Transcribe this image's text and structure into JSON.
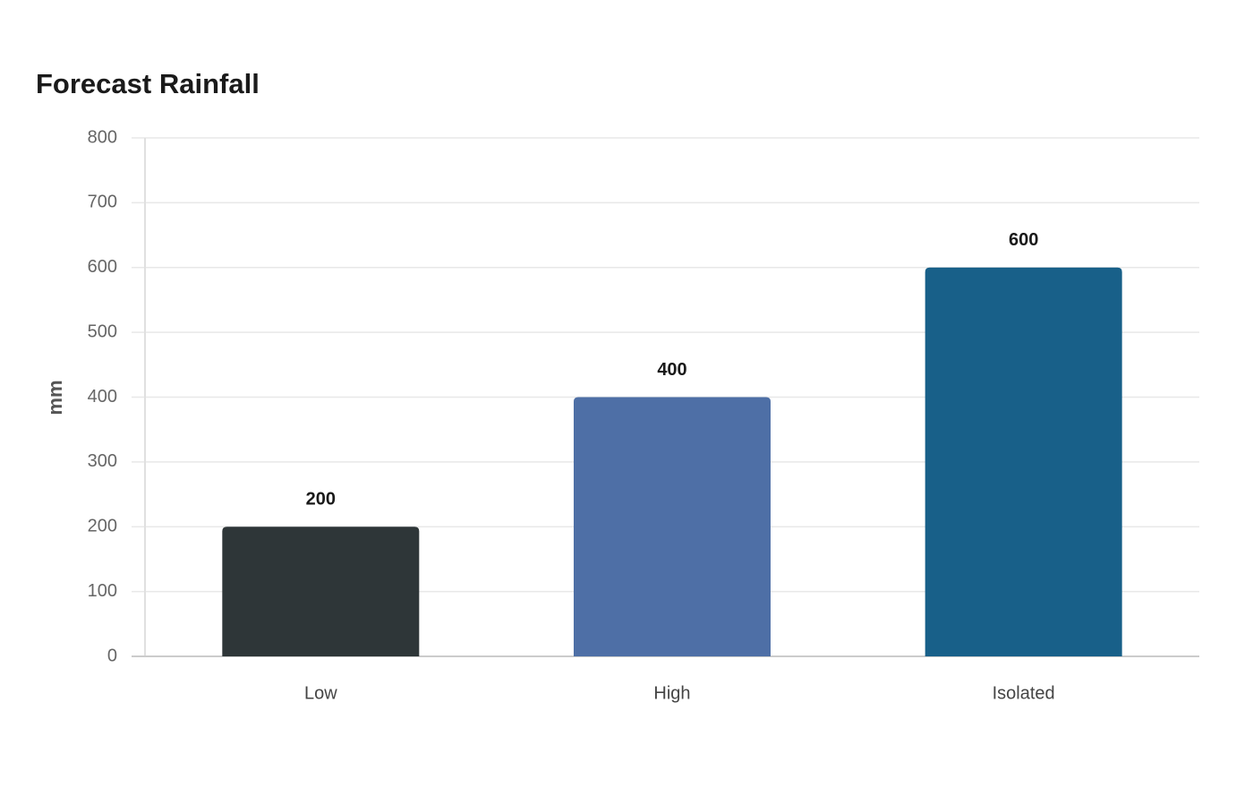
{
  "chart_data": {
    "type": "bar",
    "title": "Forecast Rainfall",
    "y_label": "mm",
    "categories": [
      "Low",
      "High",
      "Isolated"
    ],
    "values": [
      200,
      400,
      600
    ],
    "colors": [
      "#2e3638",
      "#4e6fa6",
      "#186089"
    ],
    "ylim": [
      0,
      800
    ],
    "yticks": [
      0,
      100,
      200,
      300,
      400,
      500,
      600,
      700,
      800
    ],
    "grid": true
  }
}
